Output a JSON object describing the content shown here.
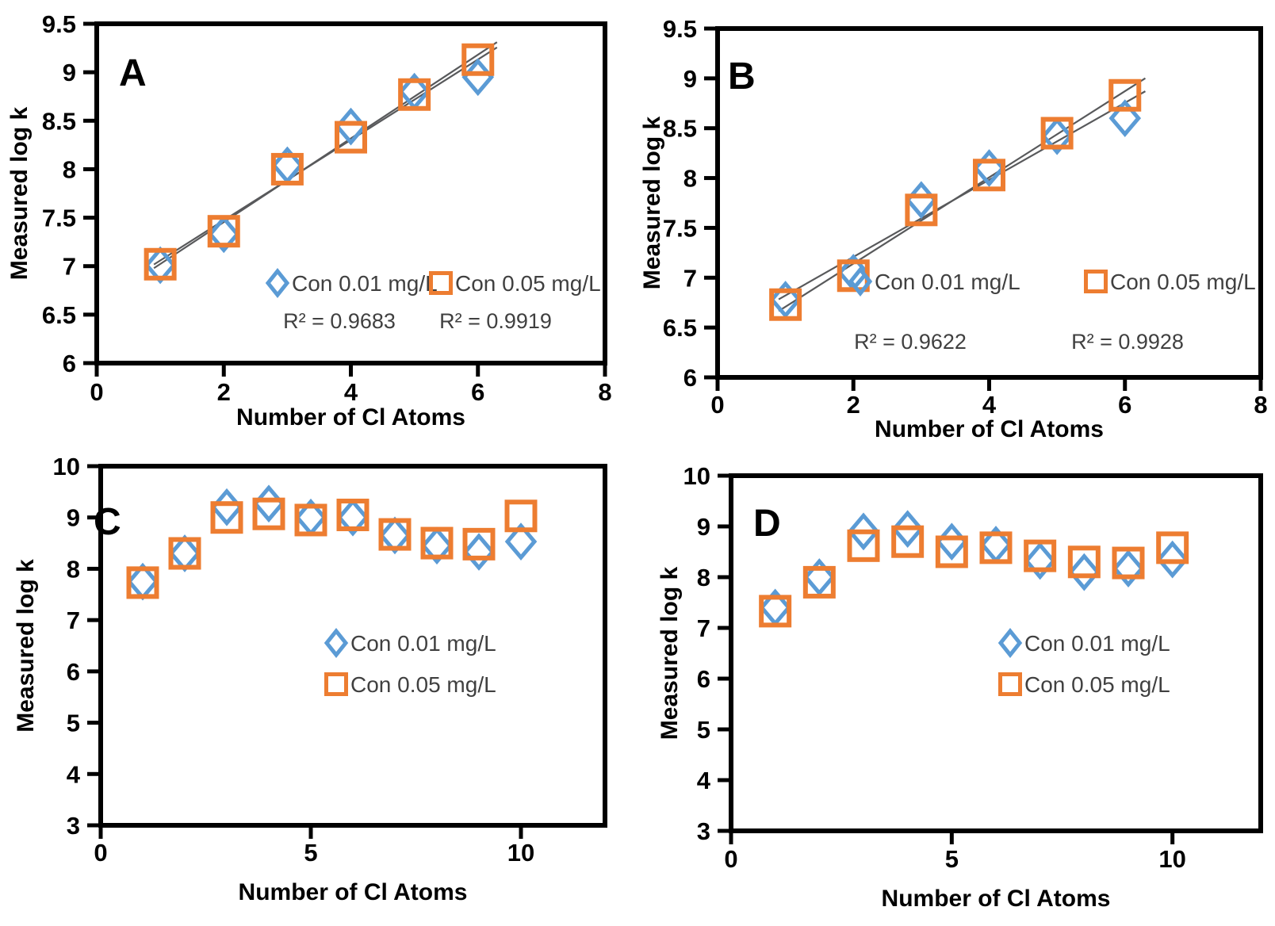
{
  "figure": {
    "description": "Four-panel scatter figure of Measured log k versus Number of Cl Atoms at two concentrations"
  },
  "colors": {
    "series_blue": "#5B9BD5",
    "series_orange": "#ED7D31",
    "trendline": "#58595B",
    "legend_text": "#404040",
    "r2_text": "#404040",
    "axis_text": "#000000",
    "frame": "#000000",
    "background": "#FFFFFF"
  },
  "chart_data": [
    {
      "panel": "A",
      "type": "scatter",
      "title": "A",
      "xlabel": "Number of Cl Atoms",
      "ylabel": "Measured log k",
      "xlim": [
        0,
        8
      ],
      "ylim": [
        6,
        9.5
      ],
      "xticks": {
        "values": [
          0,
          2,
          4,
          6,
          8
        ],
        "labels": [
          "0",
          "2",
          "4",
          "6",
          "8"
        ]
      },
      "yticks": {
        "values": [
          6,
          6.5,
          7,
          7.5,
          8,
          8.5,
          9,
          9.5
        ],
        "labels": [
          "6",
          "6.5",
          "7",
          "7.5",
          "8",
          "8.5",
          "9",
          "9.5"
        ]
      },
      "x": [
        1,
        2,
        3,
        4,
        5,
        6
      ],
      "series": [
        {
          "name": "Con 0.01 mg/L",
          "marker": "diamond",
          "color_key": "series_blue",
          "values": [
            7.01,
            7.33,
            8.04,
            8.44,
            8.8,
            8.95
          ],
          "r2_label": "R² = 0.9683"
        },
        {
          "name": "Con 0.05 mg/L",
          "marker": "square",
          "color_key": "series_orange",
          "values": [
            7.02,
            7.36,
            8.0,
            8.33,
            8.77,
            9.13
          ],
          "r2_label": "R² = 0.9919"
        }
      ],
      "trendlines": true,
      "trendline_x_range": [
        0.9,
        6.3
      ],
      "legend_position": "inside-lower-right-row",
      "grid": false
    },
    {
      "panel": "B",
      "type": "scatter",
      "title": "B",
      "xlabel": "Number of Cl Atoms",
      "ylabel": "Measured log k",
      "xlim": [
        0,
        8
      ],
      "ylim": [
        6,
        9.5
      ],
      "xticks": {
        "values": [
          0,
          2,
          4,
          6,
          8
        ],
        "labels": [
          "0",
          "2",
          "4",
          "6",
          "8"
        ]
      },
      "yticks": {
        "values": [
          6,
          6.5,
          7,
          7.5,
          8,
          8.5,
          9,
          9.5
        ],
        "labels": [
          "6",
          "6.5",
          "7",
          "7.5",
          "8",
          "8.5",
          "9",
          "9.5"
        ]
      },
      "x": [
        1,
        2,
        3,
        4,
        5,
        6
      ],
      "series": [
        {
          "name": "Con 0.01 mg/L",
          "marker": "diamond",
          "color_key": "series_blue",
          "values": [
            6.78,
            7.05,
            7.78,
            8.1,
            8.42,
            8.6
          ],
          "r2_label": "R² = 0.9622"
        },
        {
          "name": "Con 0.05 mg/L",
          "marker": "square",
          "color_key": "series_orange",
          "values": [
            6.73,
            7.02,
            7.68,
            8.03,
            8.45,
            8.83
          ],
          "r2_label": "R² = 0.9928"
        }
      ],
      "trendlines": true,
      "trendline_x_range": [
        0.9,
        6.3
      ],
      "legend_position": "inside-lower-right-row",
      "grid": false
    },
    {
      "panel": "C",
      "type": "scatter",
      "title": "C",
      "xlabel": "Number of Cl Atoms",
      "ylabel": "Measured log k",
      "xlim": [
        0,
        12
      ],
      "ylim": [
        3,
        10
      ],
      "xticks": {
        "values": [
          0,
          5,
          10
        ],
        "labels": [
          "0",
          "5",
          "10"
        ]
      },
      "yticks": {
        "values": [
          3,
          4,
          5,
          6,
          7,
          8,
          9,
          10
        ],
        "labels": [
          "3",
          "4",
          "5",
          "6",
          "7",
          "8",
          "9",
          "10"
        ]
      },
      "x": [
        1,
        2,
        3,
        4,
        5,
        6,
        7,
        8,
        9,
        10
      ],
      "series": [
        {
          "name": "Con 0.01 mg/L",
          "marker": "diamond",
          "color_key": "series_blue",
          "values": [
            7.75,
            8.3,
            9.2,
            9.27,
            9.0,
            9.0,
            8.65,
            8.45,
            8.33,
            8.53
          ],
          "r2_label": ""
        },
        {
          "name": "Con 0.05 mg/L",
          "marker": "square",
          "color_key": "series_orange",
          "values": [
            7.73,
            8.3,
            9.0,
            9.07,
            8.95,
            9.05,
            8.67,
            8.5,
            8.48,
            9.03
          ],
          "r2_label": ""
        }
      ],
      "trendlines": false,
      "trendline_x_range": null,
      "legend_position": "inside-middle-right-column",
      "grid": false
    },
    {
      "panel": "D",
      "type": "scatter",
      "title": "D",
      "xlabel": "Number of Cl Atoms",
      "ylabel": "Measured log k",
      "xlim": [
        0,
        12
      ],
      "ylim": [
        3,
        10
      ],
      "xticks": {
        "values": [
          0,
          5,
          10
        ],
        "labels": [
          "0",
          "5",
          "10"
        ]
      },
      "yticks": {
        "values": [
          3,
          4,
          5,
          6,
          7,
          8,
          9,
          10
        ],
        "labels": [
          "3",
          "4",
          "5",
          "6",
          "7",
          "8",
          "9",
          "10"
        ]
      },
      "x": [
        1,
        2,
        3,
        4,
        5,
        6,
        7,
        8,
        9,
        10
      ],
      "series": [
        {
          "name": "Con 0.01 mg/L",
          "marker": "diamond",
          "color_key": "series_blue",
          "values": [
            7.4,
            8.0,
            8.9,
            8.95,
            8.7,
            8.64,
            8.32,
            8.1,
            8.17,
            8.35
          ],
          "r2_label": ""
        },
        {
          "name": "Con 0.05 mg/L",
          "marker": "square",
          "color_key": "series_orange",
          "values": [
            7.33,
            7.9,
            8.62,
            8.7,
            8.5,
            8.58,
            8.42,
            8.3,
            8.28,
            8.58
          ],
          "r2_label": ""
        }
      ],
      "trendlines": false,
      "trendline_x_range": null,
      "legend_position": "inside-middle-right-column",
      "grid": false
    }
  ]
}
